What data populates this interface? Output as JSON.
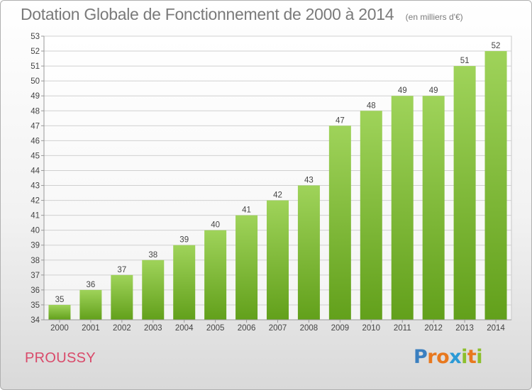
{
  "chart_data": {
    "type": "bar",
    "title": "Dotation Globale de Fonctionnement de 2000 à 2014",
    "subtitle": "(en milliers d'€)",
    "categories": [
      "2000",
      "2001",
      "2002",
      "2003",
      "2004",
      "2005",
      "2006",
      "2007",
      "2008",
      "2009",
      "2010",
      "2011",
      "2012",
      "2013",
      "2014"
    ],
    "values": [
      35,
      36,
      37,
      38,
      39,
      40,
      41,
      42,
      43,
      47,
      48,
      49,
      49,
      51,
      52
    ],
    "ylim": [
      34,
      53
    ],
    "yticks": [
      34,
      35,
      36,
      37,
      38,
      39,
      40,
      41,
      42,
      43,
      44,
      45,
      46,
      47,
      48,
      49,
      50,
      51,
      52,
      53
    ],
    "grid": true,
    "bar_color_top": "#9fd35a",
    "bar_color_bottom": "#62a01b"
  },
  "footer": {
    "commune": "PROUSSY",
    "logo_letters": [
      "P",
      "r",
      "o",
      "x",
      "i",
      "t",
      "i"
    ],
    "logo_colors": [
      "#3a7fc0",
      "#e8781e",
      "#e8781e",
      "#2b9ad6",
      "#8cbf2b",
      "#e8781e",
      "#8cbf2b"
    ]
  }
}
